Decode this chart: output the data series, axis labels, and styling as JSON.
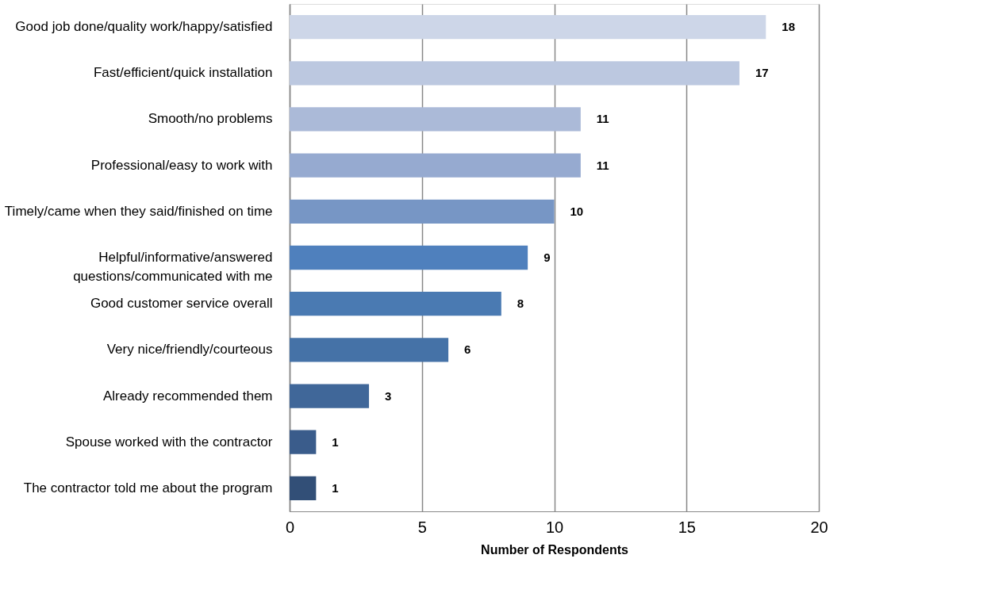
{
  "chart_data": {
    "type": "bar",
    "orientation": "horizontal",
    "xlabel": "Number of Respondents",
    "categories": [
      "Good job done/quality work/happy/satisfied",
      "Fast/efficient/quick installation",
      "Smooth/no problems",
      "Professional/easy to work with",
      "Timely/came when they said/finished on time",
      "Helpful/informative/answered\nquestions/communicated with me",
      "Good customer service overall",
      "Very nice/friendly/courteous",
      "Already recommended them",
      "Spouse worked with the contractor",
      "The contractor told me about the program"
    ],
    "values": [
      18,
      17,
      11,
      11,
      10,
      9,
      8,
      6,
      3,
      1,
      1
    ],
    "colors": [
      "#cdd6e8",
      "#bcc8e0",
      "#abbad8",
      "#96aad0",
      "#7796c5",
      "#4f80bd",
      "#4a7ab2",
      "#4572a7",
      "#406799",
      "#3a5c8b",
      "#324f77"
    ],
    "xlim": [
      0,
      20
    ],
    "xticks": [
      0,
      5,
      10,
      15,
      20
    ],
    "grid": "x",
    "data_labels": true
  }
}
